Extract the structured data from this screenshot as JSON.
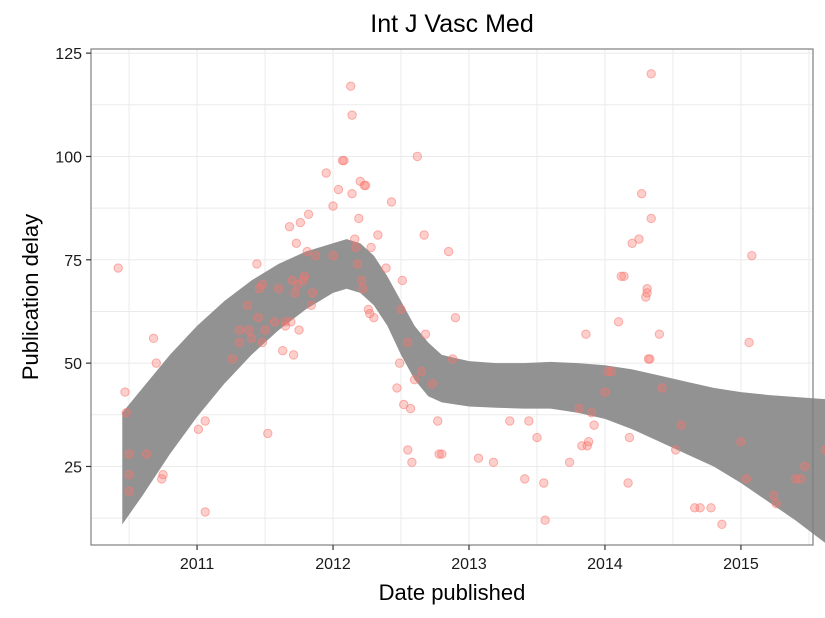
{
  "chart_data": {
    "type": "scatter",
    "title": "Int J Vasc Med",
    "xlabel": "Date published",
    "ylabel": "Publication delay",
    "xlim": [
      2010.22,
      2015.53
    ],
    "ylim": [
      6,
      126
    ],
    "x_ticks": [
      2011,
      2012,
      2013,
      2014,
      2015
    ],
    "x_tick_labels": [
      "2011",
      "2012",
      "2013",
      "2014",
      "2015"
    ],
    "y_ticks": [
      25,
      50,
      75,
      100,
      125
    ],
    "y_tick_labels": [
      "25",
      "50",
      "75",
      "100",
      "125"
    ],
    "grid": true,
    "colors": {
      "points": "#F8766D",
      "ribbon": "#8c8c8c"
    },
    "series": [
      {
        "points": [
          [
            2010.42,
            73
          ],
          [
            2010.47,
            43
          ],
          [
            2010.48,
            38
          ],
          [
            2010.5,
            19
          ],
          [
            2010.5,
            23
          ],
          [
            2010.5,
            28
          ],
          [
            2010.63,
            28
          ],
          [
            2010.68,
            56
          ],
          [
            2010.7,
            50
          ],
          [
            2010.74,
            22
          ],
          [
            2010.75,
            23
          ],
          [
            2011.01,
            34
          ],
          [
            2011.06,
            36
          ],
          [
            2011.06,
            14
          ],
          [
            2011.26,
            51
          ],
          [
            2011.31,
            58
          ],
          [
            2011.31,
            55
          ],
          [
            2011.37,
            64
          ],
          [
            2011.38,
            58
          ],
          [
            2011.4,
            56
          ],
          [
            2011.44,
            74
          ],
          [
            2011.45,
            61
          ],
          [
            2011.46,
            68
          ],
          [
            2011.48,
            69
          ],
          [
            2011.48,
            55
          ],
          [
            2011.5,
            58
          ],
          [
            2011.52,
            33
          ],
          [
            2011.57,
            60
          ],
          [
            2011.6,
            68
          ],
          [
            2011.63,
            53
          ],
          [
            2011.65,
            60
          ],
          [
            2011.65,
            59
          ],
          [
            2011.68,
            83
          ],
          [
            2011.69,
            60
          ],
          [
            2011.7,
            70
          ],
          [
            2011.71,
            52
          ],
          [
            2011.72,
            67
          ],
          [
            2011.73,
            79
          ],
          [
            2011.74,
            69
          ],
          [
            2011.75,
            58
          ],
          [
            2011.76,
            84
          ],
          [
            2011.78,
            70
          ],
          [
            2011.79,
            71
          ],
          [
            2011.81,
            77
          ],
          [
            2011.82,
            86
          ],
          [
            2011.84,
            64
          ],
          [
            2011.85,
            67
          ],
          [
            2011.87,
            76
          ],
          [
            2011.95,
            96
          ],
          [
            2012.0,
            88
          ],
          [
            2012.0,
            76
          ],
          [
            2012.04,
            92
          ],
          [
            2012.07,
            99
          ],
          [
            2012.08,
            99
          ],
          [
            2012.13,
            117
          ],
          [
            2012.14,
            110
          ],
          [
            2012.14,
            91
          ],
          [
            2012.16,
            80
          ],
          [
            2012.17,
            78
          ],
          [
            2012.18,
            74
          ],
          [
            2012.19,
            85
          ],
          [
            2012.2,
            94
          ],
          [
            2012.21,
            70
          ],
          [
            2012.22,
            68
          ],
          [
            2012.23,
            93
          ],
          [
            2012.24,
            93
          ],
          [
            2012.26,
            63
          ],
          [
            2012.27,
            62
          ],
          [
            2012.28,
            78
          ],
          [
            2012.3,
            61
          ],
          [
            2012.33,
            81
          ],
          [
            2012.39,
            73
          ],
          [
            2012.43,
            89
          ],
          [
            2012.47,
            44
          ],
          [
            2012.49,
            50
          ],
          [
            2012.5,
            63
          ],
          [
            2012.51,
            70
          ],
          [
            2012.52,
            40
          ],
          [
            2012.55,
            55
          ],
          [
            2012.55,
            29
          ],
          [
            2012.57,
            39
          ],
          [
            2012.58,
            26
          ],
          [
            2012.6,
            46
          ],
          [
            2012.62,
            100
          ],
          [
            2012.65,
            48
          ],
          [
            2012.67,
            81
          ],
          [
            2012.68,
            57
          ],
          [
            2012.73,
            45
          ],
          [
            2012.77,
            36
          ],
          [
            2012.78,
            28
          ],
          [
            2012.8,
            28
          ],
          [
            2012.85,
            77
          ],
          [
            2012.88,
            51
          ],
          [
            2012.9,
            61
          ],
          [
            2013.07,
            27
          ],
          [
            2013.18,
            26
          ],
          [
            2013.3,
            36
          ],
          [
            2013.41,
            22
          ],
          [
            2013.44,
            36
          ],
          [
            2013.5,
            32
          ],
          [
            2013.55,
            21
          ],
          [
            2013.56,
            12
          ],
          [
            2013.74,
            26
          ],
          [
            2013.81,
            39
          ],
          [
            2013.83,
            30
          ],
          [
            2013.86,
            57
          ],
          [
            2013.87,
            30
          ],
          [
            2013.88,
            31
          ],
          [
            2013.9,
            38
          ],
          [
            2013.92,
            35
          ],
          [
            2014.0,
            43
          ],
          [
            2014.02,
            48
          ],
          [
            2014.05,
            48
          ],
          [
            2014.1,
            60
          ],
          [
            2014.12,
            71
          ],
          [
            2014.14,
            71
          ],
          [
            2014.17,
            21
          ],
          [
            2014.18,
            32
          ],
          [
            2014.2,
            79
          ],
          [
            2014.25,
            80
          ],
          [
            2014.27,
            91
          ],
          [
            2014.3,
            66
          ],
          [
            2014.31,
            68
          ],
          [
            2014.31,
            67
          ],
          [
            2014.32,
            51
          ],
          [
            2014.33,
            51
          ],
          [
            2014.34,
            120
          ],
          [
            2014.34,
            85
          ],
          [
            2014.4,
            57
          ],
          [
            2014.42,
            44
          ],
          [
            2014.52,
            29
          ],
          [
            2014.56,
            35
          ],
          [
            2014.66,
            15
          ],
          [
            2014.7,
            15
          ],
          [
            2014.78,
            15
          ],
          [
            2014.86,
            11
          ],
          [
            2015.0,
            31
          ],
          [
            2015.04,
            22
          ],
          [
            2015.06,
            55
          ],
          [
            2015.08,
            76
          ],
          [
            2015.24,
            18
          ],
          [
            2015.26,
            16
          ],
          [
            2015.4,
            22
          ],
          [
            2015.44,
            22
          ],
          [
            2015.47,
            25
          ],
          [
            2015.62,
            29
          ]
        ]
      }
    ],
    "smooth_band": {
      "x": [
        2010.45,
        2010.6,
        2010.8,
        2011.0,
        2011.2,
        2011.4,
        2011.6,
        2011.8,
        2012.0,
        2012.1,
        2012.2,
        2012.3,
        2012.4,
        2012.5,
        2012.6,
        2012.7,
        2012.8,
        2013.0,
        2013.2,
        2013.4,
        2013.6,
        2013.8,
        2014.0,
        2014.2,
        2014.4,
        2014.6,
        2014.8,
        2015.0,
        2015.2,
        2015.4,
        2015.62
      ],
      "upper": [
        38,
        44,
        52,
        59,
        65,
        70,
        74,
        77,
        79,
        80,
        79,
        76,
        71,
        65,
        59,
        55,
        52,
        50.5,
        50,
        50,
        50.3,
        50,
        49.5,
        48.5,
        47,
        45.5,
        44,
        43,
        42.3,
        41.8,
        41.3
      ],
      "lower": [
        11,
        18,
        28,
        37,
        45,
        52,
        58,
        63,
        67,
        68,
        67,
        64,
        59,
        52,
        46,
        42,
        40.5,
        39.5,
        39.2,
        39,
        39,
        38,
        36.5,
        34,
        31,
        28,
        25,
        21,
        16.5,
        12,
        6.5
      ]
    }
  }
}
